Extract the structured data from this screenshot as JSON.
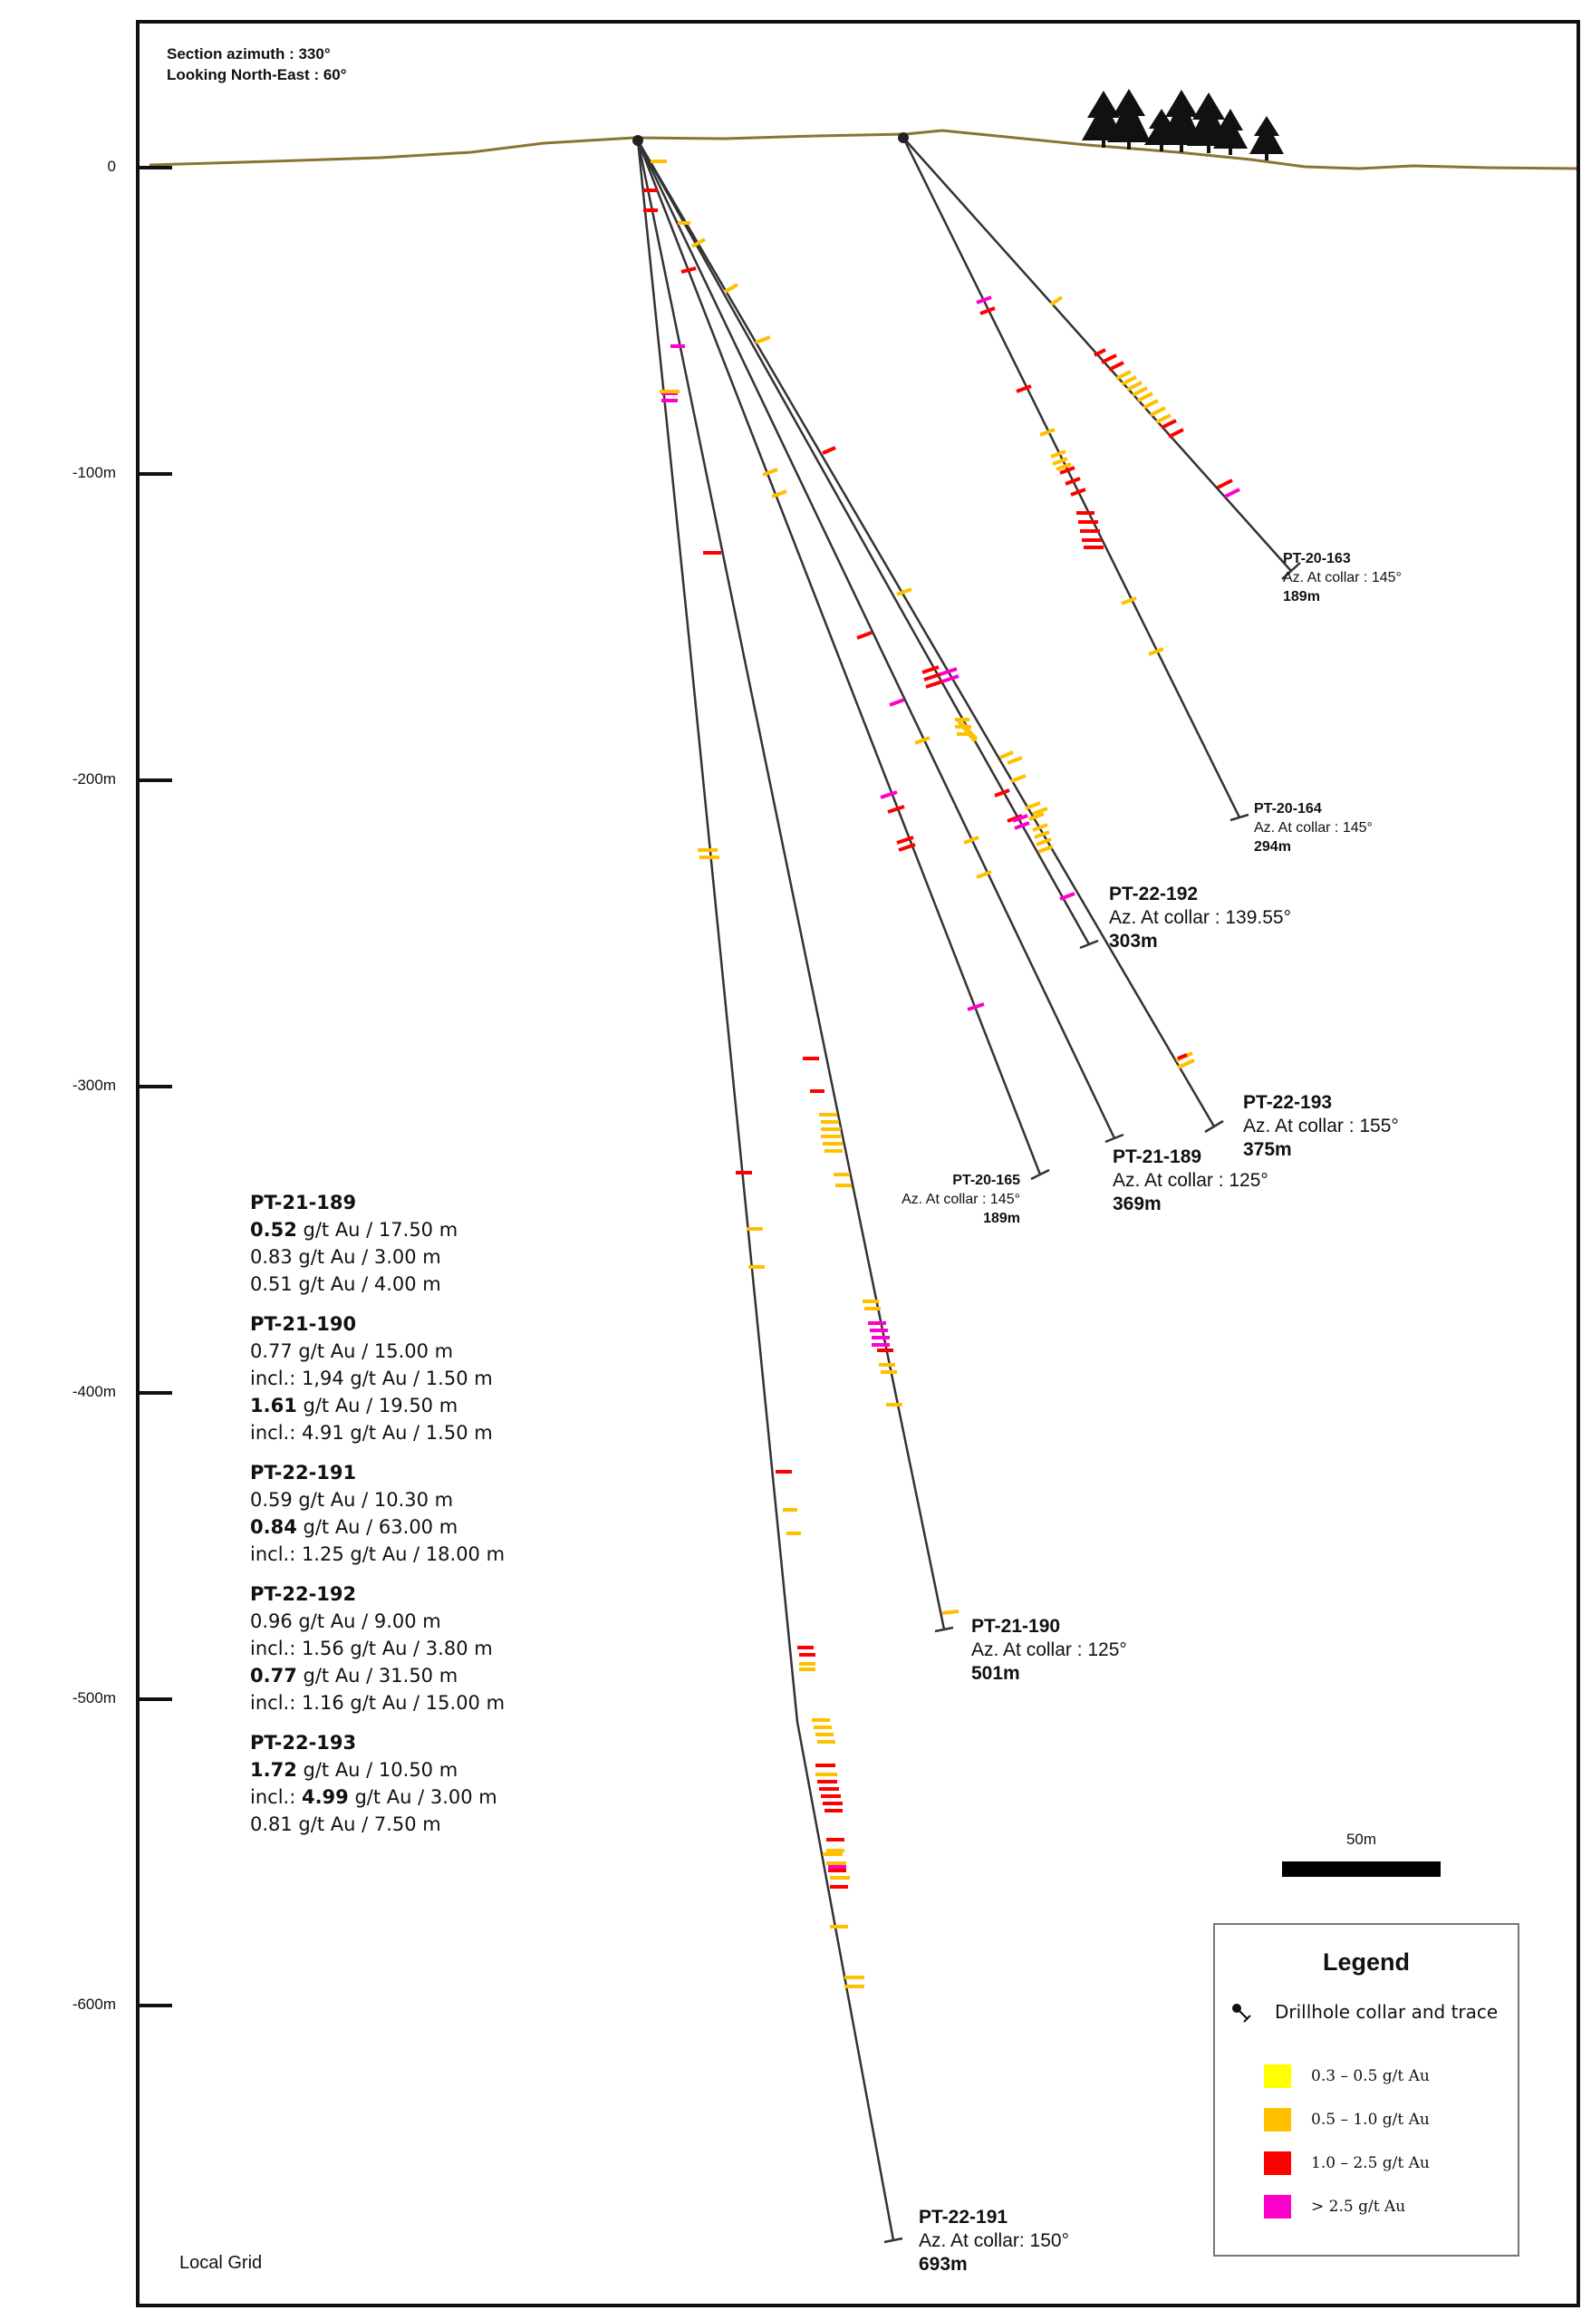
{
  "header": {
    "line1": "Section azimuth : 330°",
    "line2": "Looking North-East : 60°"
  },
  "depth_ticks": [
    "0",
    "-100m",
    "-200m",
    "-300m",
    "-400m",
    "-500m",
    "-600m"
  ],
  "holes": [
    {
      "name": "PT-20-163",
      "az": "Az. At collar : 145°",
      "length": "189m"
    },
    {
      "name": "PT-20-164",
      "az": "Az. At collar : 145°",
      "length": "294m"
    },
    {
      "name": "PT-22-192",
      "az": "Az. At collar : 139.55°",
      "length": "303m"
    },
    {
      "name": "PT-22-193",
      "az": "Az.  At collar : 155°",
      "length": "375m"
    },
    {
      "name": "PT-21-189",
      "az": "Az. At collar : 125°",
      "length": "369m"
    },
    {
      "name": "PT-20-165",
      "az": "Az. At collar : 145°",
      "length": "189m"
    },
    {
      "name": "PT-21-190",
      "az": "Az. At collar : 125°",
      "length": "501m"
    },
    {
      "name": "PT-22-191",
      "az": "Az. At collar: 150°",
      "length": "693m"
    }
  ],
  "results": [
    {
      "name": "PT-21-189",
      "lines": [
        {
          "bold": "0.52",
          "text": " g/t Au / 17.50 m"
        },
        {
          "bold": "",
          "text": "0.83 g/t Au / 3.00 m"
        },
        {
          "bold": "",
          "text": "0.51 g/t Au / 4.00 m"
        }
      ]
    },
    {
      "name": "PT-21-190",
      "lines": [
        {
          "bold": "",
          "text": "0.77 g/t Au / 15.00 m"
        },
        {
          "bold": "",
          "text": "incl.: 1,94 g/t Au / 1.50 m"
        },
        {
          "bold": "1.61",
          "text": " g/t Au / 19.50 m"
        },
        {
          "bold": "",
          "text": "incl.: 4.91 g/t Au / 1.50 m"
        }
      ]
    },
    {
      "name": "PT-22-191",
      "lines": [
        {
          "bold": "",
          "text": "0.59 g/t Au / 10.30 m"
        },
        {
          "bold": "0.84",
          "text": " g/t Au / 63.00 m"
        },
        {
          "bold": "",
          "text": "incl.: 1.25 g/t Au / 18.00 m"
        }
      ]
    },
    {
      "name": "PT-22-192",
      "lines": [
        {
          "bold": "",
          "text": "0.96 g/t Au / 9.00 m"
        },
        {
          "bold": "",
          "text": "incl.: 1.56 g/t Au / 3.80 m"
        },
        {
          "bold": "0.77",
          "text": " g/t Au / 31.50 m"
        },
        {
          "bold": "",
          "text": "incl.: 1.16 g/t Au / 15.00 m"
        }
      ]
    },
    {
      "name": "PT-22-193",
      "lines": [
        {
          "bold": "1.72",
          "text": " g/t Au / 10.50 m"
        },
        {
          "prefix": "incl.: ",
          "bold": "4.99",
          "text": " g/t Au / 3.00 m"
        },
        {
          "bold": "",
          "text": "0.81 g/t Au / 7.50 m"
        }
      ]
    }
  ],
  "scale_label": "50m",
  "legend": {
    "title": "Legend",
    "collar_label": "Drillhole collar and trace",
    "items": [
      {
        "label": "0.3 – 0.5 g/t Au",
        "color": "#ffff00"
      },
      {
        "label": "0.5 – 1.0 g/t Au",
        "color": "#ffc000"
      },
      {
        "label": "1.0 – 2.5 g/t Au",
        "color": "#ff0000"
      },
      {
        "label": "> 2.5 g/t Au",
        "color": "#ff00cc"
      }
    ]
  },
  "grid_label": "Local Grid",
  "colors": {
    "topography": "#8b7333",
    "trace": "#333333",
    "grade_low": "#ffff00",
    "grade_med": "#ffc000",
    "grade_high": "#ff0000",
    "grade_vhigh": "#ff00cc"
  }
}
